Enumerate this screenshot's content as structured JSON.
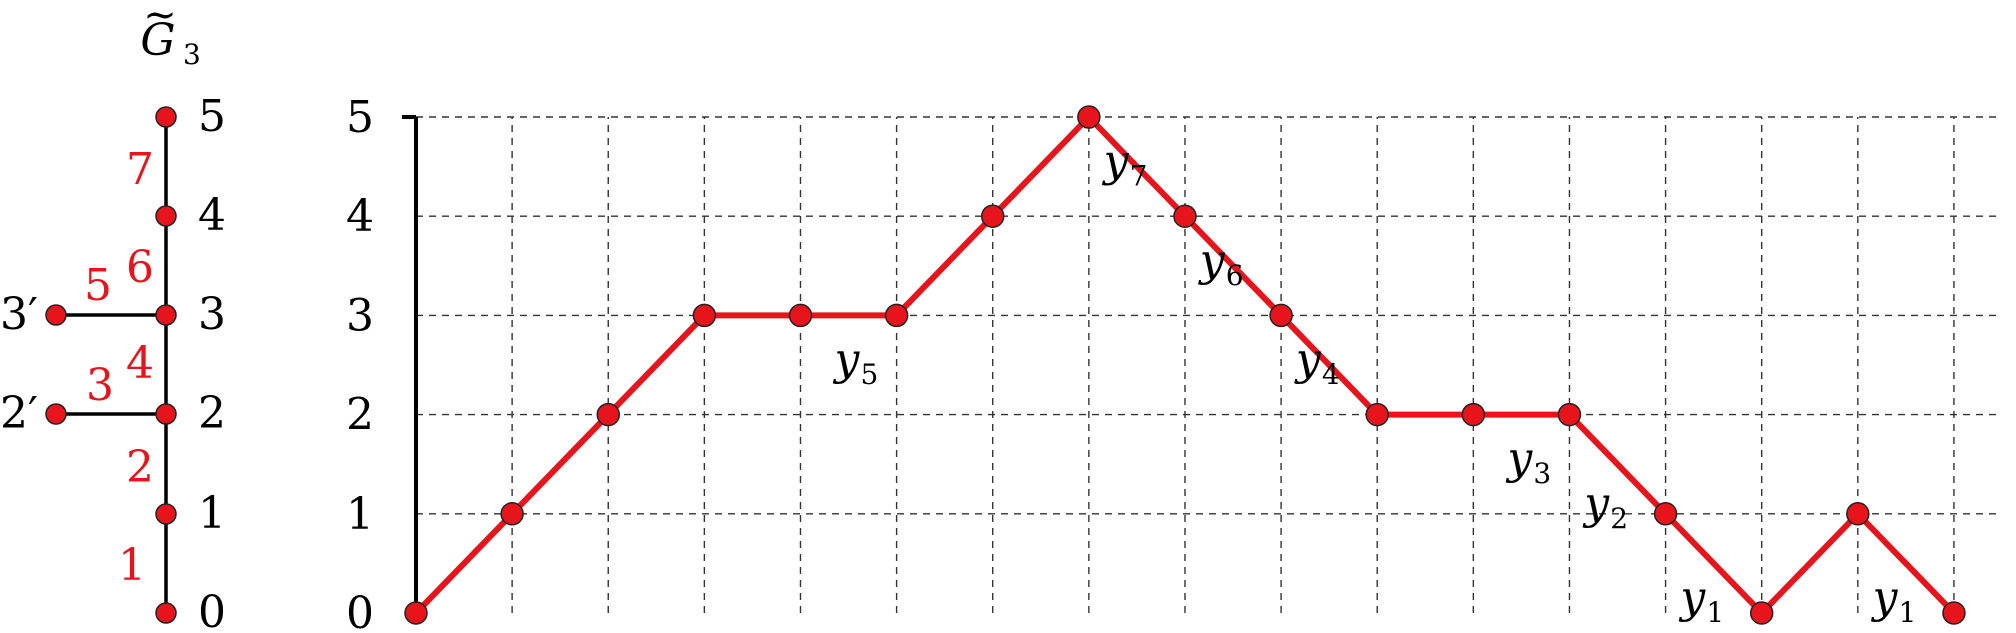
{
  "graph": {
    "title": {
      "base": "G",
      "sub": "3",
      "accent": "~"
    },
    "vertex_labels": [
      "0",
      "1",
      "2",
      "3",
      "4",
      "5"
    ],
    "branch_labels": [
      "2′",
      "3′"
    ],
    "edge_labels": [
      "1",
      "2",
      "3",
      "4",
      "5",
      "6",
      "7"
    ]
  },
  "chart_data": {
    "type": "line",
    "x": [
      0,
      1,
      2,
      3,
      4,
      5,
      6,
      7,
      8,
      9,
      10,
      11,
      12,
      13,
      14,
      15,
      16
    ],
    "values": [
      0,
      1,
      2,
      3,
      3,
      3,
      4,
      5,
      4,
      3,
      2,
      2,
      2,
      1,
      0,
      1,
      0
    ],
    "xlim": [
      0,
      16.5
    ],
    "ylim": [
      0,
      5
    ],
    "y_ticks": [
      "0",
      "1",
      "2",
      "3",
      "4",
      "5"
    ],
    "grid": true,
    "line_color": "#e8141c",
    "annotations": [
      {
        "base": "y",
        "sub": "5"
      },
      {
        "base": "y",
        "sub": "7"
      },
      {
        "base": "y",
        "sub": "6"
      },
      {
        "base": "y",
        "sub": "4"
      },
      {
        "base": "y",
        "sub": "3"
      },
      {
        "base": "y",
        "sub": "2"
      },
      {
        "base": "y",
        "sub": "1"
      },
      {
        "base": "y",
        "sub": "1"
      }
    ]
  }
}
